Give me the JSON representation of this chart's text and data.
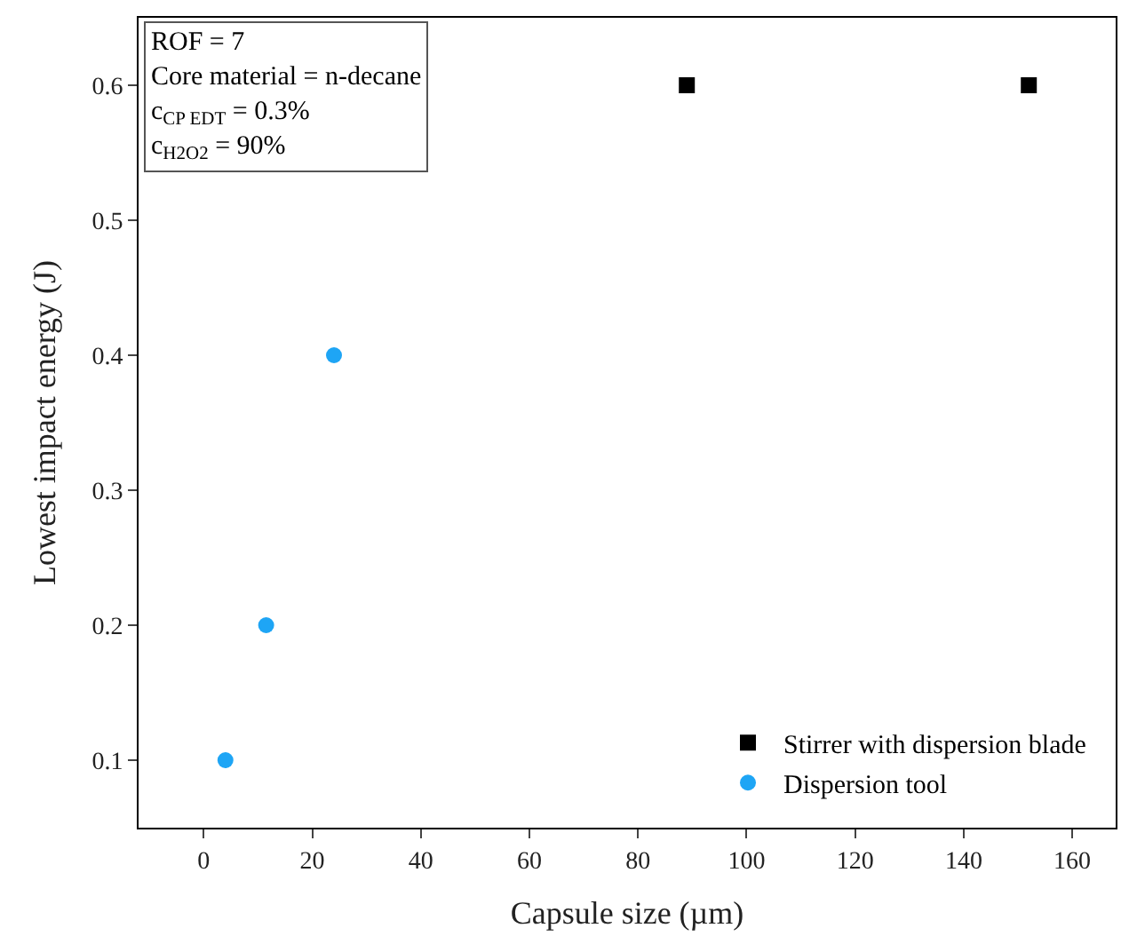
{
  "chart_data": {
    "type": "scatter",
    "xlabel": "Capsule size (µm)",
    "ylabel": "Lowest impact energy (J)",
    "xlim": [
      -12,
      168
    ],
    "xticks": [
      0,
      20,
      40,
      60,
      80,
      100,
      120,
      140,
      160
    ],
    "ylim": [
      0.05,
      0.65
    ],
    "yticks": [
      0.1,
      0.2,
      0.3,
      0.4,
      0.5,
      0.6
    ],
    "legend": "bottom right",
    "annotations": [
      "ROF = 7",
      "Core material = n-decane",
      "c$_{CP EDT}$ = 0.3%",
      "c$_{H2O2}$ = 90%"
    ],
    "series": [
      {
        "name": "Stirrer with dispersion blade",
        "color": "#000000",
        "marker": "square",
        "x": [
          89,
          152
        ],
        "values": [
          0.6,
          0.6
        ]
      },
      {
        "name": "Dispersion tool",
        "color": "#1ea5f5",
        "marker": "circle",
        "x": [
          4,
          11.5,
          24
        ],
        "values": [
          0.1,
          0.2,
          0.4
        ]
      }
    ]
  }
}
